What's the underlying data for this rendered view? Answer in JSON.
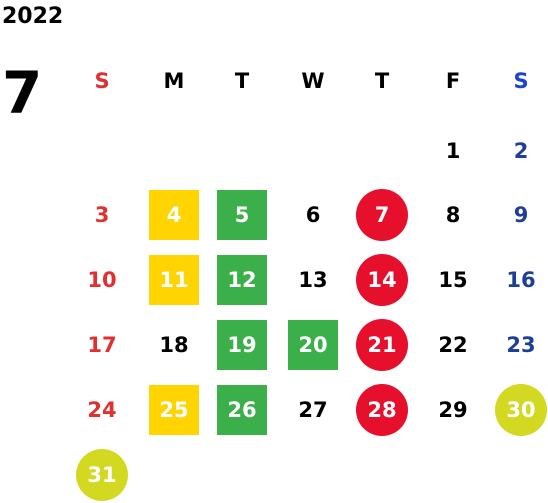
{
  "year": "2022",
  "month": "7",
  "weekdays": [
    {
      "label": "S",
      "color": "#e03030"
    },
    {
      "label": "M",
      "color": "#000000"
    },
    {
      "label": "T",
      "color": "#000000"
    },
    {
      "label": "W",
      "color": "#000000"
    },
    {
      "label": "T",
      "color": "#000000"
    },
    {
      "label": "F",
      "color": "#000000"
    },
    {
      "label": "S",
      "color": "#1a44d0"
    }
  ],
  "colors": {
    "sunday": "#e03030",
    "saturday": "#1d3f94",
    "weekday": "#000000",
    "yellow": "#ffd400",
    "green": "#3bb04a",
    "red": "#e60f2c",
    "lime": "#d3d821"
  },
  "days": [
    {
      "day": "1",
      "week": 0,
      "dow": 5
    },
    {
      "day": "2",
      "week": 0,
      "dow": 6
    },
    {
      "day": "3",
      "week": 1,
      "dow": 0
    },
    {
      "day": "4",
      "week": 1,
      "dow": 1,
      "mark": "yellow"
    },
    {
      "day": "5",
      "week": 1,
      "dow": 2,
      "mark": "green"
    },
    {
      "day": "6",
      "week": 1,
      "dow": 3
    },
    {
      "day": "7",
      "week": 1,
      "dow": 4,
      "mark": "red"
    },
    {
      "day": "8",
      "week": 1,
      "dow": 5
    },
    {
      "day": "9",
      "week": 1,
      "dow": 6
    },
    {
      "day": "10",
      "week": 2,
      "dow": 0
    },
    {
      "day": "11",
      "week": 2,
      "dow": 1,
      "mark": "yellow"
    },
    {
      "day": "12",
      "week": 2,
      "dow": 2,
      "mark": "green"
    },
    {
      "day": "13",
      "week": 2,
      "dow": 3
    },
    {
      "day": "14",
      "week": 2,
      "dow": 4,
      "mark": "red"
    },
    {
      "day": "15",
      "week": 2,
      "dow": 5
    },
    {
      "day": "16",
      "week": 2,
      "dow": 6
    },
    {
      "day": "17",
      "week": 3,
      "dow": 0
    },
    {
      "day": "18",
      "week": 3,
      "dow": 1
    },
    {
      "day": "19",
      "week": 3,
      "dow": 2,
      "mark": "green"
    },
    {
      "day": "20",
      "week": 3,
      "dow": 3,
      "mark": "green"
    },
    {
      "day": "21",
      "week": 3,
      "dow": 4,
      "mark": "red"
    },
    {
      "day": "22",
      "week": 3,
      "dow": 5
    },
    {
      "day": "23",
      "week": 3,
      "dow": 6
    },
    {
      "day": "24",
      "week": 4,
      "dow": 0
    },
    {
      "day": "25",
      "week": 4,
      "dow": 1,
      "mark": "yellow"
    },
    {
      "day": "26",
      "week": 4,
      "dow": 2,
      "mark": "green"
    },
    {
      "day": "27",
      "week": 4,
      "dow": 3
    },
    {
      "day": "28",
      "week": 4,
      "dow": 4,
      "mark": "red"
    },
    {
      "day": "29",
      "week": 4,
      "dow": 5
    },
    {
      "day": "30",
      "week": 4,
      "dow": 6,
      "mark": "lime"
    },
    {
      "day": "31",
      "week": 5,
      "dow": 0,
      "mark": "lime"
    }
  ]
}
